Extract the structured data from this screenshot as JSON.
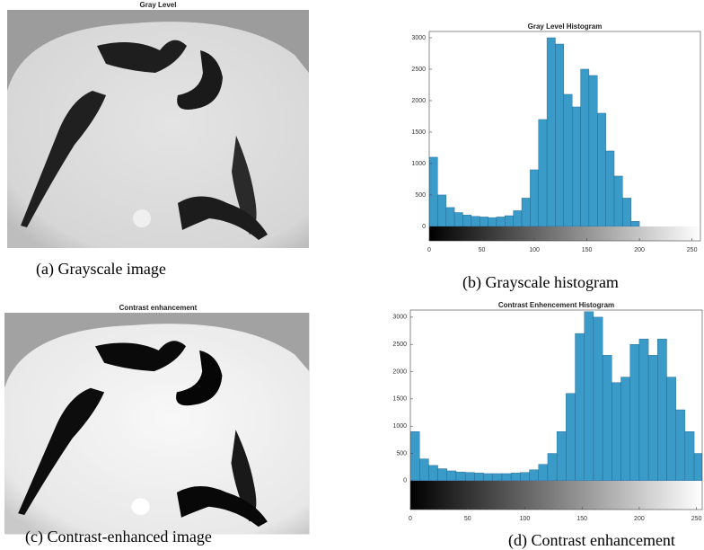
{
  "panels": [
    {
      "image_title": "Gray Level",
      "caption": "(a) Grayscale image"
    },
    {
      "caption": "(b) Grayscale histogram"
    },
    {
      "image_title": "Contrast enhancement",
      "caption": "(c) Contrast-enhanced image"
    },
    {
      "caption": "(d) Contrast enhancement"
    }
  ],
  "chart_data": [
    {
      "type": "histogram",
      "title": "Gray Level Histogram",
      "color": "#3a9bc9",
      "bins": [
        0,
        8,
        16,
        24,
        32,
        40,
        48,
        56,
        64,
        72,
        80,
        88,
        96,
        104,
        112,
        120,
        128,
        136,
        144,
        152,
        160,
        168,
        176,
        184,
        192,
        200,
        208,
        216,
        224,
        232,
        240,
        248,
        256
      ],
      "values": [
        1100,
        500,
        300,
        220,
        180,
        160,
        150,
        140,
        150,
        170,
        250,
        450,
        900,
        1700,
        3000,
        2900,
        2100,
        1900,
        2500,
        2400,
        1800,
        1200,
        800,
        450,
        80,
        0,
        0,
        0,
        0,
        0,
        0,
        0
      ],
      "xlim": [
        0,
        258
      ],
      "ylim": [
        -230,
        3100
      ],
      "xticks": [
        0,
        50,
        100,
        150,
        200,
        250
      ],
      "yticks": [
        0,
        500,
        1000,
        1500,
        2000,
        2500,
        3000
      ]
    },
    {
      "type": "histogram",
      "title": "Contrast Enhencement Histogram",
      "color": "#3a9bc9",
      "bins": [
        0,
        8,
        16,
        24,
        32,
        40,
        48,
        56,
        64,
        72,
        80,
        88,
        96,
        104,
        112,
        120,
        128,
        136,
        144,
        152,
        160,
        168,
        176,
        184,
        192,
        200,
        208,
        216,
        224,
        232,
        240,
        248,
        256
      ],
      "values": [
        900,
        400,
        280,
        220,
        180,
        160,
        150,
        140,
        130,
        130,
        130,
        140,
        150,
        200,
        300,
        500,
        900,
        1600,
        2700,
        3100,
        3000,
        2300,
        1800,
        1900,
        2500,
        2600,
        2300,
        2600,
        1900,
        1300,
        900,
        500
      ],
      "xlim": [
        0,
        255
      ],
      "ylim": [
        -530,
        3130
      ],
      "xticks": [
        0,
        50,
        100,
        150,
        200,
        250
      ],
      "yticks": [
        0,
        500,
        1000,
        1500,
        2000,
        2500,
        3000
      ]
    }
  ]
}
